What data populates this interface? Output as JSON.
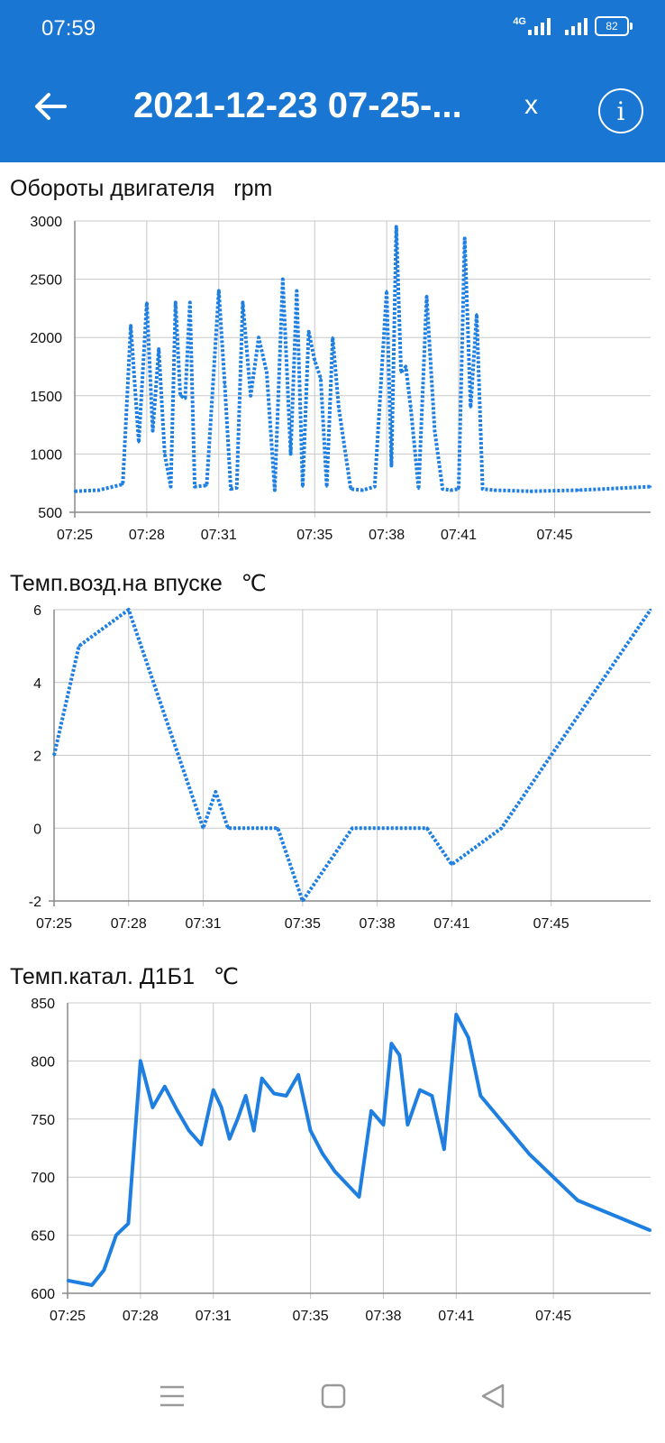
{
  "status_bar": {
    "time": "07:59",
    "network": "4G",
    "battery": "82"
  },
  "app_bar": {
    "title": "2021-12-23 07-25-...",
    "close_label": "x",
    "info_label": "i"
  },
  "colors": {
    "accent": "#1976d2",
    "series": "#1e7fe0",
    "grid": "#c8c8c8"
  },
  "icons": {
    "back": "arrow-left-icon",
    "info": "info-circle-icon",
    "menu": "menu-icon",
    "home": "home-square-icon",
    "back_nav": "back-triangle-icon"
  },
  "chart_data": [
    {
      "type": "line",
      "title": "Обороты двигателя",
      "unit": "rpm",
      "x_ticks": [
        "07:25",
        "07:28",
        "07:31",
        "07:35",
        "07:38",
        "07:41",
        "07:45"
      ],
      "y_ticks": [
        500,
        1000,
        1500,
        2000,
        2500,
        3000
      ],
      "ylim": [
        500,
        3000
      ],
      "xlim": [
        "07:25",
        "07:49"
      ],
      "grid": true,
      "series": [
        {
          "line_style": "dotted",
          "x": [
            "07:25",
            "07:26",
            "07:27",
            "07:27",
            "07:27",
            "07:28",
            "07:28",
            "07:28",
            "07:28",
            "07:29",
            "07:29",
            "07:29",
            "07:29",
            "07:29",
            "07:30",
            "07:30",
            "07:31",
            "07:31",
            "07:31",
            "07:31",
            "07:32",
            "07:32",
            "07:32",
            "07:33",
            "07:33",
            "07:33",
            "07:34",
            "07:34",
            "07:34",
            "07:34",
            "07:35",
            "07:35",
            "07:35",
            "07:35",
            "07:36",
            "07:36",
            "07:37",
            "07:37",
            "07:38",
            "07:38",
            "07:38",
            "07:38",
            "07:38",
            "07:39",
            "07:39",
            "07:39",
            "07:40",
            "07:40",
            "07:40",
            "07:41",
            "07:41",
            "07:41",
            "07:41",
            "07:42",
            "07:42",
            "07:44",
            "07:46",
            "07:49"
          ],
          "values": [
            680,
            690,
            740,
            2100,
            1100,
            2300,
            1200,
            1900,
            1000,
            720,
            2300,
            1500,
            1480,
            2300,
            720,
            730,
            2400,
            1600,
            700,
            710,
            2300,
            1500,
            2000,
            1700,
            690,
            2500,
            1000,
            2400,
            720,
            2050,
            1800,
            1650,
            720,
            2000,
            1400,
            700,
            690,
            720,
            2400,
            900,
            2950,
            1700,
            1750,
            1400,
            700,
            2350,
            1200,
            700,
            690,
            700,
            2850,
            1400,
            2200,
            700,
            690,
            680,
            690,
            720
          ]
        }
      ]
    },
    {
      "type": "line",
      "title": "Темп.возд.на впуске",
      "unit": "℃",
      "x_ticks": [
        "07:25",
        "07:28",
        "07:31",
        "07:35",
        "07:38",
        "07:41",
        "07:45"
      ],
      "y_ticks": [
        -2,
        0,
        2,
        4,
        6
      ],
      "ylim": [
        -2,
        6
      ],
      "xlim": [
        "07:25",
        "07:49"
      ],
      "grid": true,
      "series": [
        {
          "line_style": "dotted",
          "x": [
            "07:25",
            "07:26",
            "07:28",
            "07:31",
            "07:31",
            "07:32",
            "07:34",
            "07:35",
            "07:37",
            "07:40",
            "07:41",
            "07:43",
            "07:49"
          ],
          "values": [
            2,
            5,
            6,
            0,
            1,
            0,
            0,
            -2,
            0,
            0,
            -1,
            0,
            6
          ]
        }
      ]
    },
    {
      "type": "line",
      "title": "Темп.катал. Д1Б1",
      "unit": "℃",
      "x_ticks": [
        "07:25",
        "07:28",
        "07:31",
        "07:35",
        "07:38",
        "07:41",
        "07:45"
      ],
      "y_ticks": [
        600,
        650,
        700,
        750,
        800,
        850
      ],
      "ylim": [
        600,
        850
      ],
      "xlim": [
        "07:25",
        "07:49"
      ],
      "grid": true,
      "series": [
        {
          "line_style": "solid",
          "x": [
            "07:25",
            "07:26",
            "07:26",
            "07:27",
            "07:27",
            "07:28",
            "07:28",
            "07:29",
            "07:29",
            "07:30",
            "07:30",
            "07:31",
            "07:31",
            "07:31",
            "07:32",
            "07:32",
            "07:32",
            "07:33",
            "07:33",
            "07:34",
            "07:34",
            "07:35",
            "07:35",
            "07:36",
            "07:37",
            "07:37",
            "07:38",
            "07:38",
            "07:38",
            "07:39",
            "07:39",
            "07:40",
            "07:40",
            "07:41",
            "07:41",
            "07:42",
            "07:44",
            "07:46",
            "07:49"
          ],
          "values": [
            611,
            607,
            620,
            650,
            660,
            800,
            760,
            778,
            758,
            740,
            728,
            775,
            760,
            733,
            750,
            770,
            740,
            785,
            772,
            770,
            788,
            740,
            720,
            705,
            683,
            757,
            745,
            815,
            805,
            745,
            775,
            770,
            724,
            840,
            820,
            770,
            720,
            680,
            654
          ]
        }
      ]
    }
  ],
  "chart_ui": [
    {
      "title": "Обороты двигателя",
      "unit": "rpm"
    },
    {
      "title": "Темп.возд.на впуске",
      "unit": "℃"
    },
    {
      "title": "Темп.катал. Д1Б1",
      "unit": "℃"
    }
  ]
}
